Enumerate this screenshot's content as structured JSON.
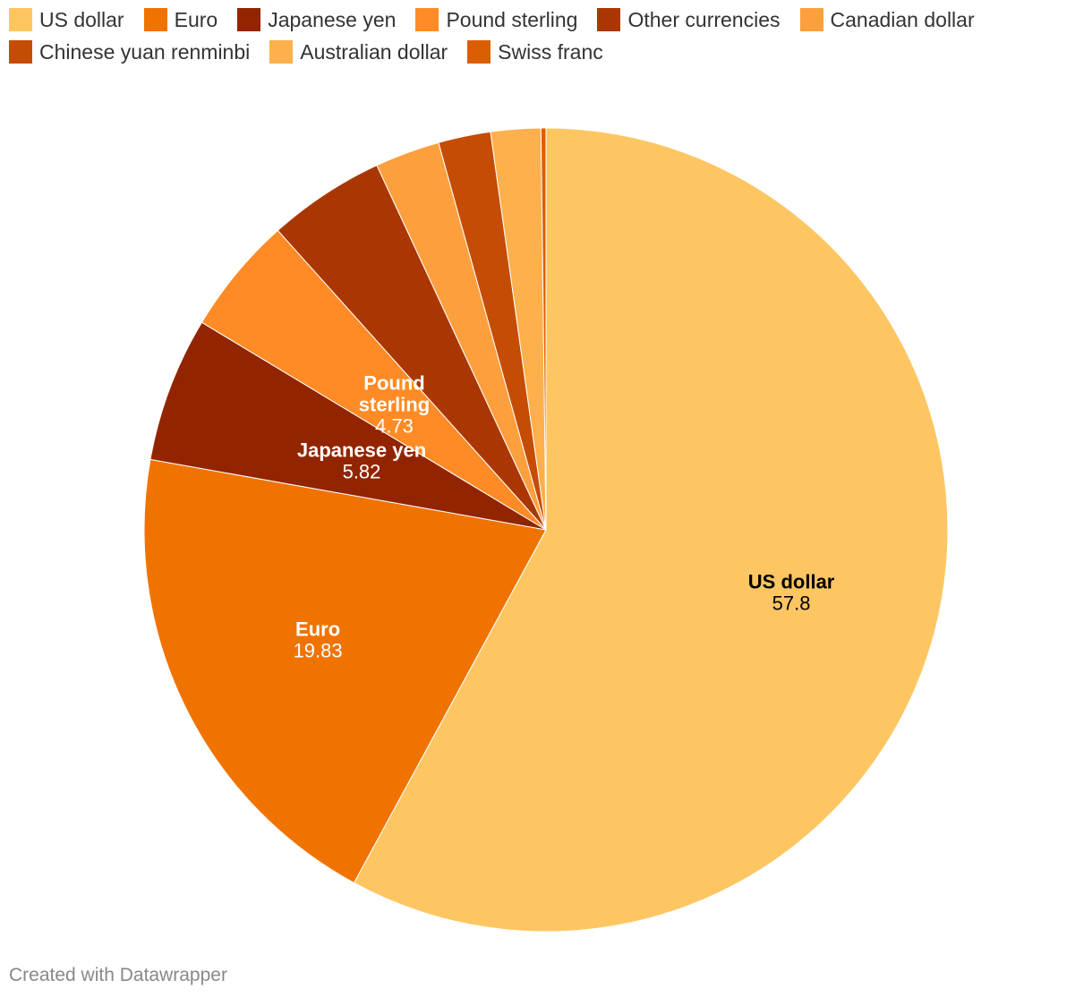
{
  "chart_data": {
    "type": "pie",
    "legend_position": "top-left",
    "slices": [
      {
        "name": "US dollar",
        "value": 57.8,
        "color": "#fec662",
        "label_lines": [
          "US dollar"
        ],
        "label_color": "#000000",
        "show_label": true
      },
      {
        "name": "Euro",
        "value": 19.83,
        "color": "#f07300",
        "label_lines": [
          "Euro"
        ],
        "label_color": "#ffffff",
        "show_label": true
      },
      {
        "name": "Japanese yen",
        "value": 5.82,
        "color": "#922500",
        "label_lines": [
          "Japanese yen"
        ],
        "label_color": "#ffffff",
        "show_label": true
      },
      {
        "name": "Pound sterling",
        "value": 4.73,
        "color": "#fe8b25",
        "label_lines": [
          "Pound",
          "sterling"
        ],
        "label_color": "#ffffff",
        "show_label": true
      },
      {
        "name": "Other currencies",
        "value": 4.7,
        "color": "#aa3701",
        "label_lines": [],
        "label_color": "#ffffff",
        "show_label": false
      },
      {
        "name": "Canadian dollar",
        "value": 2.6,
        "color": "#fe9f3e",
        "label_lines": [],
        "label_color": "#ffffff",
        "show_label": false
      },
      {
        "name": "Chinese yuan renminbi",
        "value": 2.1,
        "color": "#c54c03",
        "label_lines": [],
        "label_color": "#ffffff",
        "show_label": false
      },
      {
        "name": "Australian dollar",
        "value": 2.0,
        "color": "#feb04c",
        "label_lines": [],
        "label_color": "#ffffff",
        "show_label": false
      },
      {
        "name": "Swiss franc",
        "value": 0.2,
        "color": "#db5e03",
        "label_lines": [],
        "label_color": "#ffffff",
        "show_label": false
      }
    ]
  },
  "footer": {
    "credit": "Created with Datawrapper"
  }
}
